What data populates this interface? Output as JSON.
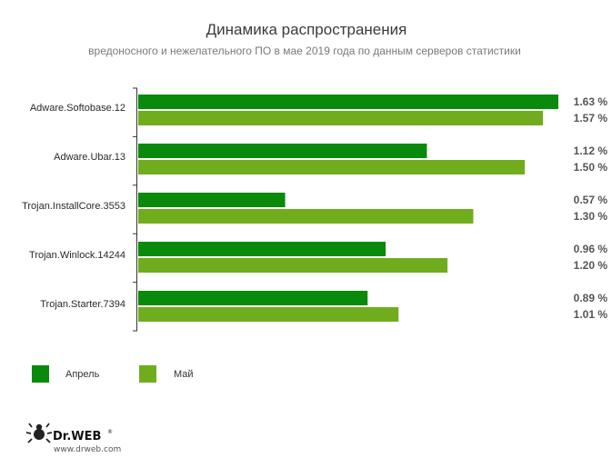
{
  "chart_data": {
    "type": "bar",
    "orientation": "horizontal",
    "title": "Динамика распространения",
    "subtitle": "вредоносного и нежелательного ПО в мае 2019 года по данным серверов статистики",
    "categories": [
      "Adware.Softobase.12",
      "Adware.Ubar.13",
      "Trojan.InstallCore.3553",
      "Trojan.Winlock.14244",
      "Trojan.Starter.7394"
    ],
    "series": [
      {
        "name": "Апрель",
        "color": "#0a8a0a",
        "values": [
          1.63,
          1.12,
          0.57,
          0.96,
          0.89
        ],
        "labels": [
          "1.63 %",
          "1.12 %",
          "0.57 %",
          "0.96 %",
          "0.89 %"
        ]
      },
      {
        "name": "Май",
        "color": "#70ad1e",
        "values": [
          1.57,
          1.5,
          1.3,
          1.2,
          1.01
        ],
        "labels": [
          "1.57 %",
          "1.50 %",
          "1.30 %",
          "1.20 %",
          "1.01 %"
        ]
      }
    ],
    "xlim": [
      0,
      1.63
    ],
    "grid": false,
    "legend": "bottom-left"
  },
  "brand": {
    "name": "Dr.WEB",
    "url": "www.drweb.com"
  }
}
